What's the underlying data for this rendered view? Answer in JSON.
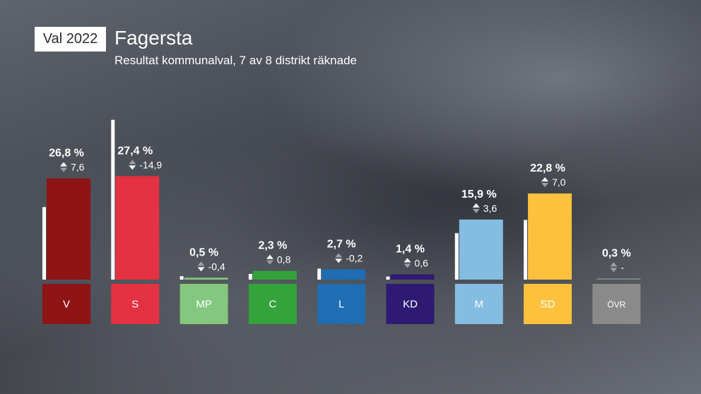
{
  "header": {
    "badge": "Val 2022",
    "title": "Fagersta",
    "subtitle": "Resultat kommunalval, 7 av 8 distrikt räknade"
  },
  "chart_data": {
    "type": "bar",
    "unit": "%",
    "ylim": [
      0,
      40
    ],
    "categories": [
      "V",
      "S",
      "MP",
      "C",
      "L",
      "KD",
      "M",
      "SD",
      "ÖVR"
    ],
    "values": [
      26.8,
      27.4,
      0.5,
      2.3,
      2.7,
      1.4,
      15.9,
      22.8,
      0.3
    ],
    "value_labels": [
      "26,8 %",
      "27,4 %",
      "0,5 %",
      "2,3 %",
      "2,7 %",
      "1,4 %",
      "15,9 %",
      "22,8 %",
      "0,3 %"
    ],
    "previous_values": [
      19.2,
      42.3,
      0.9,
      1.5,
      2.9,
      0.8,
      12.3,
      15.8,
      null
    ],
    "changes": [
      "7,6",
      "-14,9",
      "-0,4",
      "0,8",
      "-0,2",
      "0,6",
      "3,6",
      "7,0",
      "-"
    ],
    "change_direction": [
      "up",
      "down",
      "down",
      "up",
      "down",
      "up",
      "up",
      "up",
      "none"
    ],
    "colors": [
      "#8e1416",
      "#e43242",
      "#83c87e",
      "#33a33a",
      "#1f6db3",
      "#2e1a73",
      "#83bde2",
      "#fdc13e",
      "#8a8a8a"
    ],
    "label_sizes": [
      "normal",
      "normal",
      "normal",
      "normal",
      "normal",
      "normal",
      "normal",
      "normal",
      "small"
    ]
  }
}
